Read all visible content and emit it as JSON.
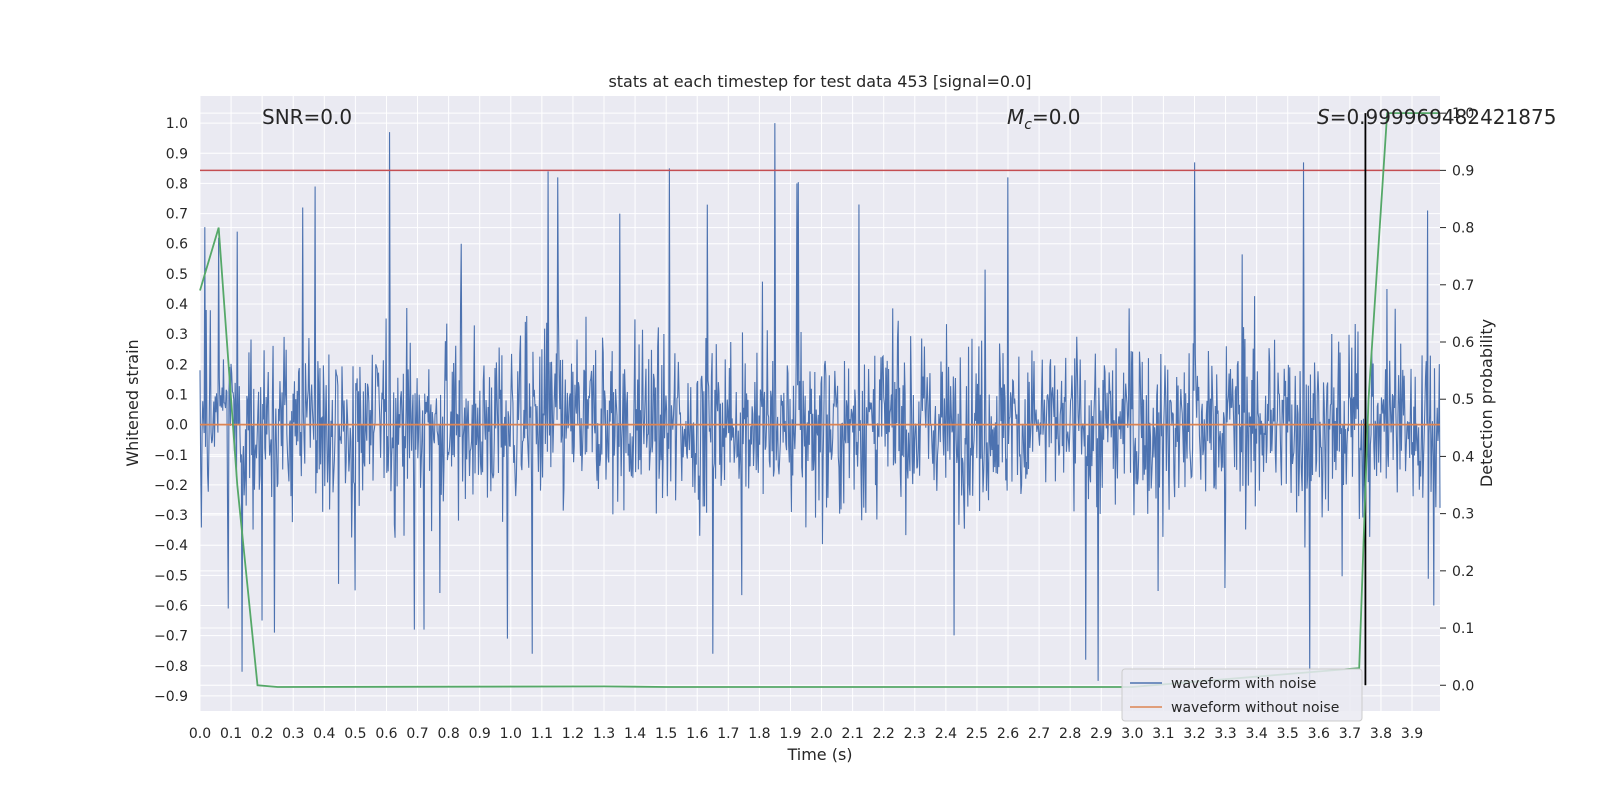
{
  "chart_data": {
    "type": "line",
    "title": "stats at each timestep for test data 453 [signal=0.0]",
    "xlabel": "Time (s)",
    "ylabel": "Whitened strain",
    "y2label": "Detection probability",
    "xlim": [
      0.0,
      3.99
    ],
    "ylim": [
      -0.95,
      1.09
    ],
    "y2lim": [
      -0.045,
      1.03
    ],
    "x_ticks": [
      0.0,
      0.1,
      0.2,
      0.3,
      0.4,
      0.5,
      0.6,
      0.7,
      0.8,
      0.9,
      1.0,
      1.1,
      1.2,
      1.3,
      1.4,
      1.5,
      1.6,
      1.7,
      1.8,
      1.9,
      2.0,
      2.1,
      2.2,
      2.3,
      2.4,
      2.5,
      2.6,
      2.7,
      2.8,
      2.9,
      3.0,
      3.1,
      3.2,
      3.3,
      3.4,
      3.5,
      3.6,
      3.7,
      3.8,
      3.9
    ],
    "y_ticks": [
      -0.9,
      -0.8,
      -0.7,
      -0.6,
      -0.5,
      -0.4,
      -0.3,
      -0.2,
      -0.1,
      0.0,
      0.1,
      0.2,
      0.3,
      0.4,
      0.5,
      0.6,
      0.7,
      0.8,
      0.9,
      1.0
    ],
    "y2_ticks": [
      0.0,
      0.1,
      0.2,
      0.3,
      0.4,
      0.5,
      0.6,
      0.7,
      0.8,
      0.9,
      1.0
    ],
    "grid": true,
    "legend_position": "lower-right",
    "annotations": {
      "snr": "SNR=0.0",
      "mc_symbol": "M",
      "mc_sub": "c",
      "mc_value": "=0.0",
      "s_symbol": "S",
      "s_value": "=0.999969482421875"
    },
    "series": [
      {
        "name": "waveform with noise",
        "axis": "left",
        "color": "#4c72b0",
        "kind": "noise",
        "envelope_peaks": [
          [
            0.02,
            0.38
          ],
          [
            0.06,
            0.62
          ],
          [
            0.09,
            -0.61
          ],
          [
            0.12,
            0.64
          ],
          [
            0.2,
            -0.65
          ],
          [
            0.24,
            -0.69
          ],
          [
            0.33,
            0.72
          ],
          [
            0.37,
            0.79
          ],
          [
            0.5,
            -0.55
          ],
          [
            0.61,
            0.97
          ],
          [
            0.69,
            -0.68
          ],
          [
            0.72,
            -0.68
          ],
          [
            0.84,
            0.6
          ],
          [
            0.99,
            -0.71
          ],
          [
            1.07,
            -0.76
          ],
          [
            1.12,
            0.84
          ],
          [
            1.15,
            0.82
          ],
          [
            1.35,
            0.7
          ],
          [
            1.51,
            0.85
          ],
          [
            1.65,
            -0.76
          ],
          [
            1.85,
            1.0
          ],
          [
            1.92,
            0.8
          ],
          [
            2.12,
            0.73
          ],
          [
            2.6,
            0.82
          ],
          [
            2.85,
            -0.78
          ],
          [
            2.89,
            -0.85
          ],
          [
            3.2,
            0.87
          ],
          [
            3.55,
            0.87
          ],
          [
            3.57,
            -0.85
          ],
          [
            3.82,
            0.45
          ],
          [
            3.95,
            0.71
          ],
          [
            3.97,
            -0.6
          ]
        ]
      },
      {
        "name": "waveform without noise",
        "axis": "left",
        "color": "#dd8452",
        "x": [
          0.0,
          3.99
        ],
        "y": [
          0.0,
          0.0
        ]
      },
      {
        "name": "detection probability",
        "axis": "right",
        "color": "#55a868",
        "legend": false,
        "x": [
          0.0,
          0.06,
          0.12,
          0.185,
          0.25,
          1.3,
          1.5,
          3.0,
          3.73,
          3.76,
          3.82,
          3.88,
          3.99
        ],
        "y": [
          0.69,
          0.8,
          0.35,
          0.0,
          -0.003,
          -0.002,
          -0.003,
          -0.003,
          0.03,
          0.5,
          1.0,
          1.0,
          1.0
        ]
      }
    ],
    "reference_lines": [
      {
        "name": "threshold",
        "axis": "right",
        "orientation": "horizontal",
        "value": 0.9,
        "color": "#c44e52"
      },
      {
        "name": "detection-time",
        "axis": "right",
        "orientation": "vertical",
        "value": 3.75,
        "range": [
          0.0,
          1.0
        ],
        "color": "#000000"
      }
    ]
  }
}
